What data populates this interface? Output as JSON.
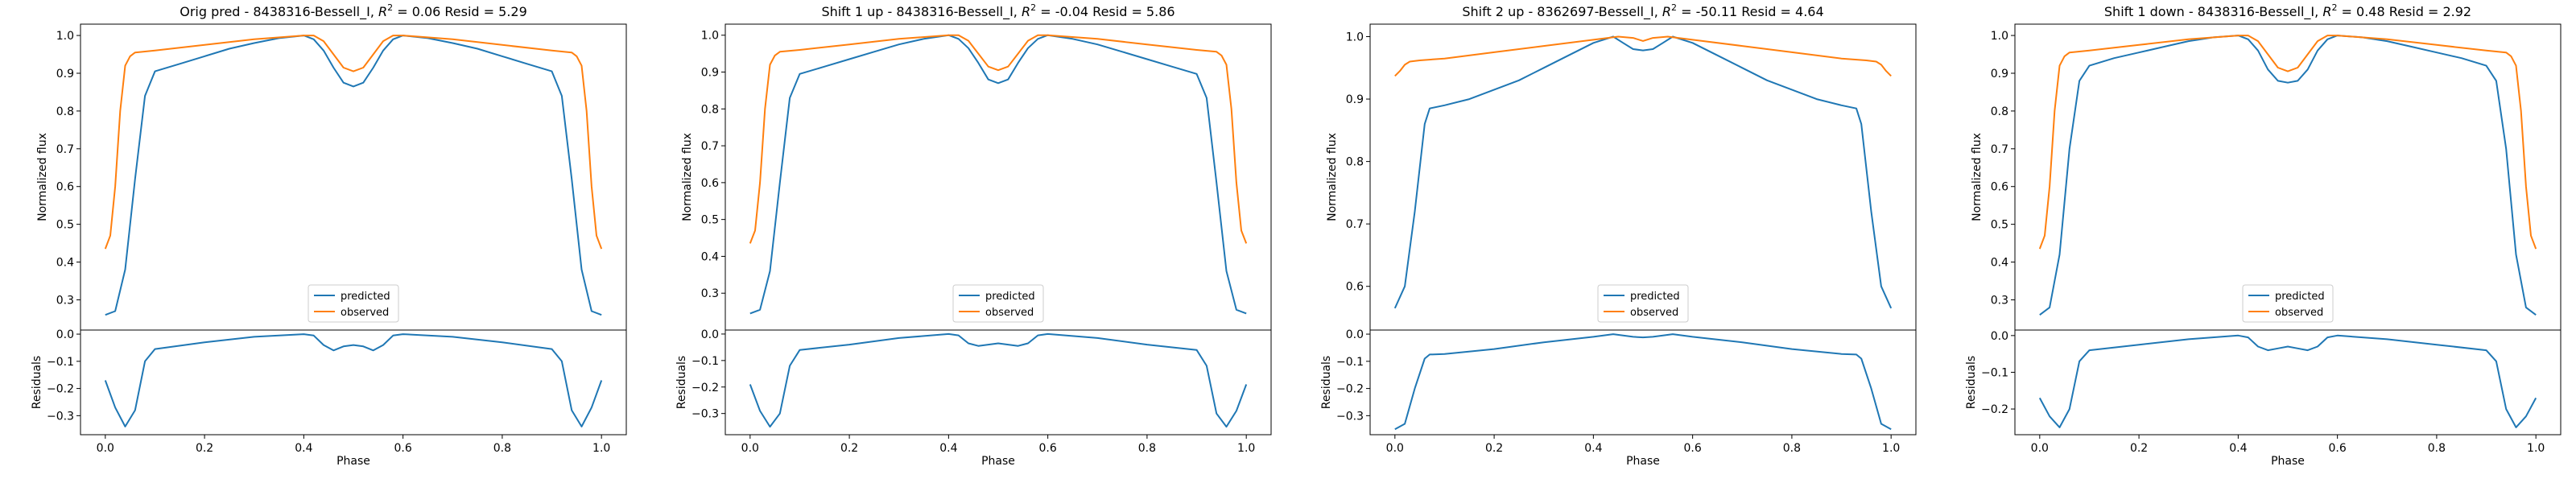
{
  "figure": {
    "panels": [
      {
        "title_prefix": "Orig pred - 8438316-Bessell_I, ",
        "title_suffix": " = 0.06 Resid = 5.29",
        "r2_symbol": "R",
        "r2_sup": "2"
      },
      {
        "title_prefix": "Shift 1 up - 8438316-Bessell_I, ",
        "title_suffix": " = -0.04 Resid = 5.86",
        "r2_symbol": "R",
        "r2_sup": "2"
      },
      {
        "title_prefix": "Shift 2 up - 8362697-Bessell_I, ",
        "title_suffix": " = -50.11 Resid = 4.64",
        "r2_symbol": "R",
        "r2_sup": "2"
      },
      {
        "title_prefix": "Shift 1 down - 8438316-Bessell_I, ",
        "title_suffix": " = 0.48 Resid = 2.92",
        "r2_symbol": "R",
        "r2_sup": "2"
      }
    ]
  },
  "chart_data": [
    {
      "type": "line",
      "title": "Orig pred - 8438316-Bessell_I, R^2 = 0.06 Resid = 5.29",
      "xlabel": "Phase",
      "ylabel_top": "Normalized flux",
      "ylabel_bottom": "Residuals",
      "xlim": [
        -0.05,
        1.05
      ],
      "ylim_top": [
        0.22,
        1.03
      ],
      "ylim_bottom": [
        -0.37,
        0.015
      ],
      "xticks": [
        0.0,
        0.2,
        0.4,
        0.6,
        0.8,
        1.0
      ],
      "xtick_labels": [
        "0.0",
        "0.2",
        "0.4",
        "0.6",
        "0.8",
        "1.0"
      ],
      "yticks_top": [
        0.3,
        0.4,
        0.5,
        0.6,
        0.7,
        0.8,
        0.9,
        1.0
      ],
      "ytick_labels_top": [
        "0.3",
        "0.4",
        "0.5",
        "0.6",
        "0.7",
        "0.8",
        "0.9",
        "1.0"
      ],
      "yticks_bottom": [
        0.0,
        -0.1,
        -0.2,
        -0.3
      ],
      "ytick_labels_bottom": [
        "0.0",
        "−0.1",
        "−0.2",
        "−0.3"
      ],
      "legend": {
        "position": "lower center",
        "entries": [
          "predicted",
          "observed"
        ]
      },
      "series": [
        {
          "name": "predicted",
          "color": "#1f77b4",
          "x": [
            0.0,
            0.02,
            0.04,
            0.06,
            0.08,
            0.1,
            0.15,
            0.2,
            0.25,
            0.3,
            0.35,
            0.4,
            0.42,
            0.44,
            0.46,
            0.48,
            0.5,
            0.52,
            0.54,
            0.56,
            0.58,
            0.6,
            0.65,
            0.7,
            0.75,
            0.8,
            0.85,
            0.9,
            0.92,
            0.94,
            0.96,
            0.98,
            1.0
          ],
          "values": [
            0.26,
            0.27,
            0.38,
            0.62,
            0.84,
            0.905,
            0.925,
            0.945,
            0.965,
            0.98,
            0.993,
            1.0,
            0.99,
            0.96,
            0.915,
            0.875,
            0.865,
            0.875,
            0.915,
            0.96,
            0.99,
            1.0,
            0.993,
            0.98,
            0.965,
            0.945,
            0.925,
            0.905,
            0.84,
            0.62,
            0.38,
            0.27,
            0.26
          ]
        },
        {
          "name": "observed",
          "color": "#ff7f0e",
          "x": [
            0.0,
            0.01,
            0.02,
            0.03,
            0.04,
            0.05,
            0.06,
            0.1,
            0.2,
            0.3,
            0.4,
            0.42,
            0.44,
            0.46,
            0.48,
            0.5,
            0.52,
            0.54,
            0.56,
            0.58,
            0.6,
            0.7,
            0.8,
            0.9,
            0.94,
            0.95,
            0.96,
            0.97,
            0.98,
            0.99,
            1.0
          ],
          "values": [
            0.435,
            0.47,
            0.6,
            0.8,
            0.92,
            0.945,
            0.955,
            0.96,
            0.975,
            0.99,
            1.0,
            1.0,
            0.985,
            0.95,
            0.915,
            0.905,
            0.915,
            0.95,
            0.985,
            1.0,
            1.0,
            0.99,
            0.975,
            0.96,
            0.955,
            0.945,
            0.92,
            0.8,
            0.6,
            0.47,
            0.435
          ]
        }
      ],
      "residuals": {
        "color": "#1f77b4",
        "x": [
          0.0,
          0.02,
          0.04,
          0.06,
          0.08,
          0.1,
          0.2,
          0.3,
          0.4,
          0.42,
          0.44,
          0.46,
          0.48,
          0.5,
          0.52,
          0.54,
          0.56,
          0.58,
          0.6,
          0.7,
          0.8,
          0.9,
          0.92,
          0.94,
          0.96,
          0.98,
          1.0
        ],
        "values": [
          -0.17,
          -0.27,
          -0.34,
          -0.28,
          -0.1,
          -0.055,
          -0.03,
          -0.01,
          0.0,
          -0.005,
          -0.04,
          -0.06,
          -0.045,
          -0.04,
          -0.045,
          -0.06,
          -0.04,
          -0.005,
          0.0,
          -0.01,
          -0.03,
          -0.055,
          -0.1,
          -0.28,
          -0.34,
          -0.27,
          -0.17
        ]
      }
    },
    {
      "type": "line",
      "title": "Shift 1 up - 8438316-Bessell_I, R^2 = -0.04 Resid = 5.86",
      "xlabel": "Phase",
      "ylabel_top": "Normalized flux",
      "ylabel_bottom": "Residuals",
      "xlim": [
        -0.05,
        1.05
      ],
      "ylim_top": [
        0.2,
        1.03
      ],
      "ylim_bottom": [
        -0.38,
        0.015
      ],
      "xticks": [
        0.0,
        0.2,
        0.4,
        0.6,
        0.8,
        1.0
      ],
      "xtick_labels": [
        "0.0",
        "0.2",
        "0.4",
        "0.6",
        "0.8",
        "1.0"
      ],
      "yticks_top": [
        0.3,
        0.4,
        0.5,
        0.6,
        0.7,
        0.8,
        0.9,
        1.0
      ],
      "ytick_labels_top": [
        "0.3",
        "0.4",
        "0.5",
        "0.6",
        "0.7",
        "0.8",
        "0.9",
        "1.0"
      ],
      "yticks_bottom": [
        0.0,
        -0.1,
        -0.2,
        -0.3
      ],
      "ytick_labels_bottom": [
        "0.0",
        "−0.1",
        "−0.2",
        "−0.3"
      ],
      "legend": {
        "position": "lower center",
        "entries": [
          "predicted",
          "observed"
        ]
      },
      "series": [
        {
          "name": "predicted",
          "color": "#1f77b4",
          "x": [
            0.0,
            0.02,
            0.04,
            0.06,
            0.08,
            0.1,
            0.15,
            0.2,
            0.25,
            0.3,
            0.35,
            0.4,
            0.42,
            0.44,
            0.46,
            0.48,
            0.5,
            0.52,
            0.54,
            0.56,
            0.58,
            0.6,
            0.65,
            0.7,
            0.75,
            0.8,
            0.85,
            0.9,
            0.92,
            0.94,
            0.96,
            0.98,
            1.0
          ],
          "values": [
            0.245,
            0.255,
            0.36,
            0.6,
            0.83,
            0.895,
            0.915,
            0.935,
            0.955,
            0.975,
            0.99,
            1.0,
            0.99,
            0.965,
            0.925,
            0.88,
            0.87,
            0.88,
            0.925,
            0.965,
            0.99,
            1.0,
            0.99,
            0.975,
            0.955,
            0.935,
            0.915,
            0.895,
            0.83,
            0.6,
            0.36,
            0.255,
            0.245
          ]
        },
        {
          "name": "observed",
          "color": "#ff7f0e",
          "x": [
            0.0,
            0.01,
            0.02,
            0.03,
            0.04,
            0.05,
            0.06,
            0.1,
            0.2,
            0.3,
            0.4,
            0.42,
            0.44,
            0.46,
            0.48,
            0.5,
            0.52,
            0.54,
            0.56,
            0.58,
            0.6,
            0.7,
            0.8,
            0.9,
            0.94,
            0.95,
            0.96,
            0.97,
            0.98,
            0.99,
            1.0
          ],
          "values": [
            0.435,
            0.47,
            0.6,
            0.8,
            0.92,
            0.945,
            0.955,
            0.96,
            0.975,
            0.99,
            1.0,
            1.0,
            0.985,
            0.95,
            0.915,
            0.905,
            0.915,
            0.95,
            0.985,
            1.0,
            1.0,
            0.99,
            0.975,
            0.96,
            0.955,
            0.945,
            0.92,
            0.8,
            0.6,
            0.47,
            0.435
          ]
        }
      ],
      "residuals": {
        "color": "#1f77b4",
        "x": [
          0.0,
          0.02,
          0.04,
          0.06,
          0.08,
          0.1,
          0.2,
          0.3,
          0.4,
          0.42,
          0.44,
          0.46,
          0.48,
          0.5,
          0.52,
          0.54,
          0.56,
          0.58,
          0.6,
          0.7,
          0.8,
          0.9,
          0.92,
          0.94,
          0.96,
          0.98,
          1.0
        ],
        "values": [
          -0.19,
          -0.29,
          -0.35,
          -0.3,
          -0.12,
          -0.06,
          -0.04,
          -0.015,
          0.0,
          -0.005,
          -0.035,
          -0.045,
          -0.04,
          -0.035,
          -0.04,
          -0.045,
          -0.035,
          -0.005,
          0.0,
          -0.015,
          -0.04,
          -0.06,
          -0.12,
          -0.3,
          -0.35,
          -0.29,
          -0.19
        ]
      }
    },
    {
      "type": "line",
      "title": "Shift 2 up - 8362697-Bessell_I, R^2 = -50.11 Resid = 4.64",
      "xlabel": "Phase",
      "ylabel_top": "Normalized flux",
      "ylabel_bottom": "Residuals",
      "xlim": [
        -0.05,
        1.05
      ],
      "ylim_top": [
        0.53,
        1.02
      ],
      "ylim_bottom": [
        -0.37,
        0.015
      ],
      "xticks": [
        0.0,
        0.2,
        0.4,
        0.6,
        0.8,
        1.0
      ],
      "xtick_labels": [
        "0.0",
        "0.2",
        "0.4",
        "0.6",
        "0.8",
        "1.0"
      ],
      "yticks_top": [
        0.6,
        0.7,
        0.8,
        0.9,
        1.0
      ],
      "ytick_labels_top": [
        "0.6",
        "0.7",
        "0.8",
        "0.9",
        "1.0"
      ],
      "yticks_bottom": [
        0.0,
        -0.1,
        -0.2,
        -0.3
      ],
      "ytick_labels_bottom": [
        "0.0",
        "−0.1",
        "−0.2",
        "−0.3"
      ],
      "legend": {
        "position": "lower center",
        "entries": [
          "predicted",
          "observed"
        ]
      },
      "series": [
        {
          "name": "predicted",
          "color": "#1f77b4",
          "x": [
            0.0,
            0.02,
            0.04,
            0.06,
            0.07,
            0.1,
            0.15,
            0.2,
            0.25,
            0.3,
            0.35,
            0.4,
            0.44,
            0.46,
            0.48,
            0.5,
            0.52,
            0.54,
            0.56,
            0.6,
            0.65,
            0.7,
            0.75,
            0.8,
            0.85,
            0.9,
            0.93,
            0.94,
            0.96,
            0.98,
            1.0
          ],
          "values": [
            0.565,
            0.6,
            0.72,
            0.86,
            0.885,
            0.89,
            0.9,
            0.915,
            0.93,
            0.95,
            0.97,
            0.99,
            1.0,
            0.99,
            0.98,
            0.978,
            0.98,
            0.99,
            1.0,
            0.99,
            0.97,
            0.95,
            0.93,
            0.915,
            0.9,
            0.89,
            0.885,
            0.86,
            0.72,
            0.6,
            0.565
          ]
        },
        {
          "name": "observed",
          "color": "#ff7f0e",
          "x": [
            0.0,
            0.01,
            0.02,
            0.03,
            0.05,
            0.1,
            0.2,
            0.3,
            0.4,
            0.45,
            0.48,
            0.5,
            0.52,
            0.55,
            0.6,
            0.7,
            0.8,
            0.9,
            0.95,
            0.97,
            0.98,
            0.99,
            1.0
          ],
          "values": [
            0.937,
            0.945,
            0.955,
            0.96,
            0.962,
            0.965,
            0.975,
            0.985,
            0.995,
            1.0,
            0.998,
            0.993,
            0.998,
            1.0,
            0.995,
            0.985,
            0.975,
            0.965,
            0.962,
            0.96,
            0.955,
            0.945,
            0.937
          ]
        }
      ],
      "residuals": {
        "color": "#1f77b4",
        "x": [
          0.0,
          0.02,
          0.04,
          0.06,
          0.07,
          0.1,
          0.2,
          0.3,
          0.4,
          0.44,
          0.46,
          0.48,
          0.5,
          0.52,
          0.54,
          0.56,
          0.6,
          0.7,
          0.8,
          0.9,
          0.93,
          0.94,
          0.96,
          0.98,
          1.0
        ],
        "values": [
          -0.35,
          -0.33,
          -0.2,
          -0.09,
          -0.075,
          -0.073,
          -0.055,
          -0.03,
          -0.01,
          0.0,
          -0.005,
          -0.01,
          -0.012,
          -0.01,
          -0.005,
          0.0,
          -0.01,
          -0.03,
          -0.055,
          -0.073,
          -0.075,
          -0.09,
          -0.2,
          -0.33,
          -0.35
        ]
      }
    },
    {
      "type": "line",
      "title": "Shift 1 down - 8438316-Bessell_I, R^2 = 0.48 Resid = 2.92",
      "xlabel": "Phase",
      "ylabel_top": "Normalized flux",
      "ylabel_bottom": "Residuals",
      "xlim": [
        -0.05,
        1.05
      ],
      "ylim_top": [
        0.22,
        1.03
      ],
      "ylim_bottom": [
        -0.27,
        0.015
      ],
      "xticks": [
        0.0,
        0.2,
        0.4,
        0.6,
        0.8,
        1.0
      ],
      "xtick_labels": [
        "0.0",
        "0.2",
        "0.4",
        "0.6",
        "0.8",
        "1.0"
      ],
      "yticks_top": [
        0.3,
        0.4,
        0.5,
        0.6,
        0.7,
        0.8,
        0.9,
        1.0
      ],
      "ytick_labels_top": [
        "0.3",
        "0.4",
        "0.5",
        "0.6",
        "0.7",
        "0.8",
        "0.9",
        "1.0"
      ],
      "yticks_bottom": [
        0.0,
        -0.1,
        -0.2
      ],
      "ytick_labels_bottom": [
        "0.0",
        "−0.1",
        "−0.2"
      ],
      "legend": {
        "position": "lower center",
        "entries": [
          "predicted",
          "observed"
        ]
      },
      "series": [
        {
          "name": "predicted",
          "color": "#1f77b4",
          "x": [
            0.0,
            0.02,
            0.04,
            0.06,
            0.08,
            0.1,
            0.15,
            0.2,
            0.25,
            0.3,
            0.35,
            0.4,
            0.42,
            0.44,
            0.46,
            0.48,
            0.5,
            0.52,
            0.54,
            0.56,
            0.58,
            0.6,
            0.65,
            0.7,
            0.75,
            0.8,
            0.85,
            0.9,
            0.92,
            0.94,
            0.96,
            0.98,
            1.0
          ],
          "values": [
            0.26,
            0.28,
            0.42,
            0.7,
            0.88,
            0.92,
            0.94,
            0.955,
            0.97,
            0.985,
            0.995,
            1.0,
            0.99,
            0.96,
            0.91,
            0.88,
            0.875,
            0.88,
            0.91,
            0.96,
            0.99,
            1.0,
            0.995,
            0.985,
            0.97,
            0.955,
            0.94,
            0.92,
            0.88,
            0.7,
            0.42,
            0.28,
            0.26
          ]
        },
        {
          "name": "observed",
          "color": "#ff7f0e",
          "x": [
            0.0,
            0.01,
            0.02,
            0.03,
            0.04,
            0.05,
            0.06,
            0.1,
            0.2,
            0.3,
            0.4,
            0.42,
            0.44,
            0.46,
            0.48,
            0.5,
            0.52,
            0.54,
            0.56,
            0.58,
            0.6,
            0.7,
            0.8,
            0.9,
            0.94,
            0.95,
            0.96,
            0.97,
            0.98,
            0.99,
            1.0
          ],
          "values": [
            0.435,
            0.47,
            0.6,
            0.8,
            0.92,
            0.945,
            0.955,
            0.96,
            0.975,
            0.99,
            1.0,
            1.0,
            0.985,
            0.95,
            0.915,
            0.905,
            0.915,
            0.95,
            0.985,
            1.0,
            1.0,
            0.99,
            0.975,
            0.96,
            0.955,
            0.945,
            0.92,
            0.8,
            0.6,
            0.47,
            0.435
          ]
        }
      ],
      "residuals": {
        "color": "#1f77b4",
        "x": [
          0.0,
          0.02,
          0.04,
          0.06,
          0.08,
          0.1,
          0.2,
          0.3,
          0.4,
          0.42,
          0.44,
          0.46,
          0.48,
          0.5,
          0.52,
          0.54,
          0.56,
          0.58,
          0.6,
          0.7,
          0.8,
          0.9,
          0.92,
          0.94,
          0.96,
          0.98,
          1.0
        ],
        "values": [
          -0.17,
          -0.22,
          -0.25,
          -0.2,
          -0.07,
          -0.04,
          -0.025,
          -0.01,
          0.0,
          -0.005,
          -0.03,
          -0.04,
          -0.035,
          -0.03,
          -0.035,
          -0.04,
          -0.03,
          -0.005,
          0.0,
          -0.01,
          -0.025,
          -0.04,
          -0.07,
          -0.2,
          -0.25,
          -0.22,
          -0.17
        ]
      }
    }
  ]
}
